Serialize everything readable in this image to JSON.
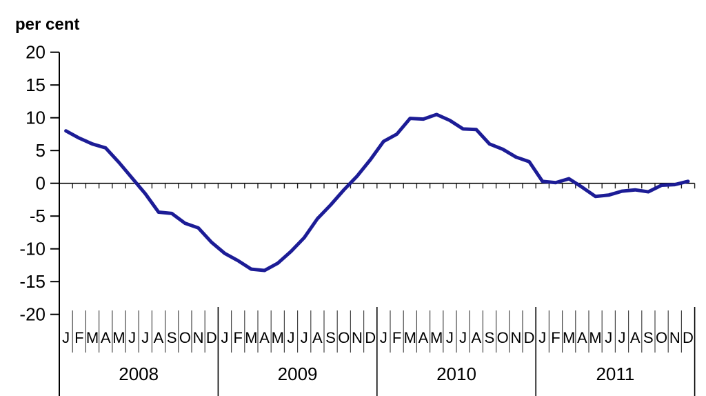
{
  "chart_data": {
    "type": "line",
    "title": "per cent",
    "ylabel": "per cent",
    "xlabel": "",
    "ylim": [
      -20,
      20
    ],
    "ytick_step": 5,
    "yticks": [
      20,
      15,
      10,
      5,
      0,
      -5,
      -10,
      -15,
      -20
    ],
    "years": [
      "2008",
      "2009",
      "2010",
      "2011"
    ],
    "month_letters": [
      "J",
      "F",
      "M",
      "A",
      "M",
      "J",
      "J",
      "A",
      "S",
      "O",
      "N",
      "D"
    ],
    "grid": false,
    "legend_position": "none",
    "line_color": "#1c1c96",
    "axis_color": "#000000",
    "series": [
      {
        "name": "per cent",
        "values": [
          8.0,
          6.9,
          6.0,
          5.4,
          3.2,
          0.8,
          -1.6,
          -4.4,
          -4.6,
          -6.1,
          -6.8,
          -9.0,
          -10.7,
          -11.8,
          -13.1,
          -13.3,
          -12.2,
          -10.4,
          -8.3,
          -5.4,
          -3.3,
          -1.0,
          1.1,
          3.6,
          6.4,
          7.5,
          9.9,
          9.8,
          10.5,
          9.6,
          8.3,
          8.2,
          6.0,
          5.2,
          4.0,
          3.3,
          0.3,
          0.1,
          0.7,
          -0.6,
          -2.0,
          -1.8,
          -1.2,
          -1.0,
          -1.3,
          -0.3,
          -0.2,
          0.3
        ]
      }
    ]
  }
}
